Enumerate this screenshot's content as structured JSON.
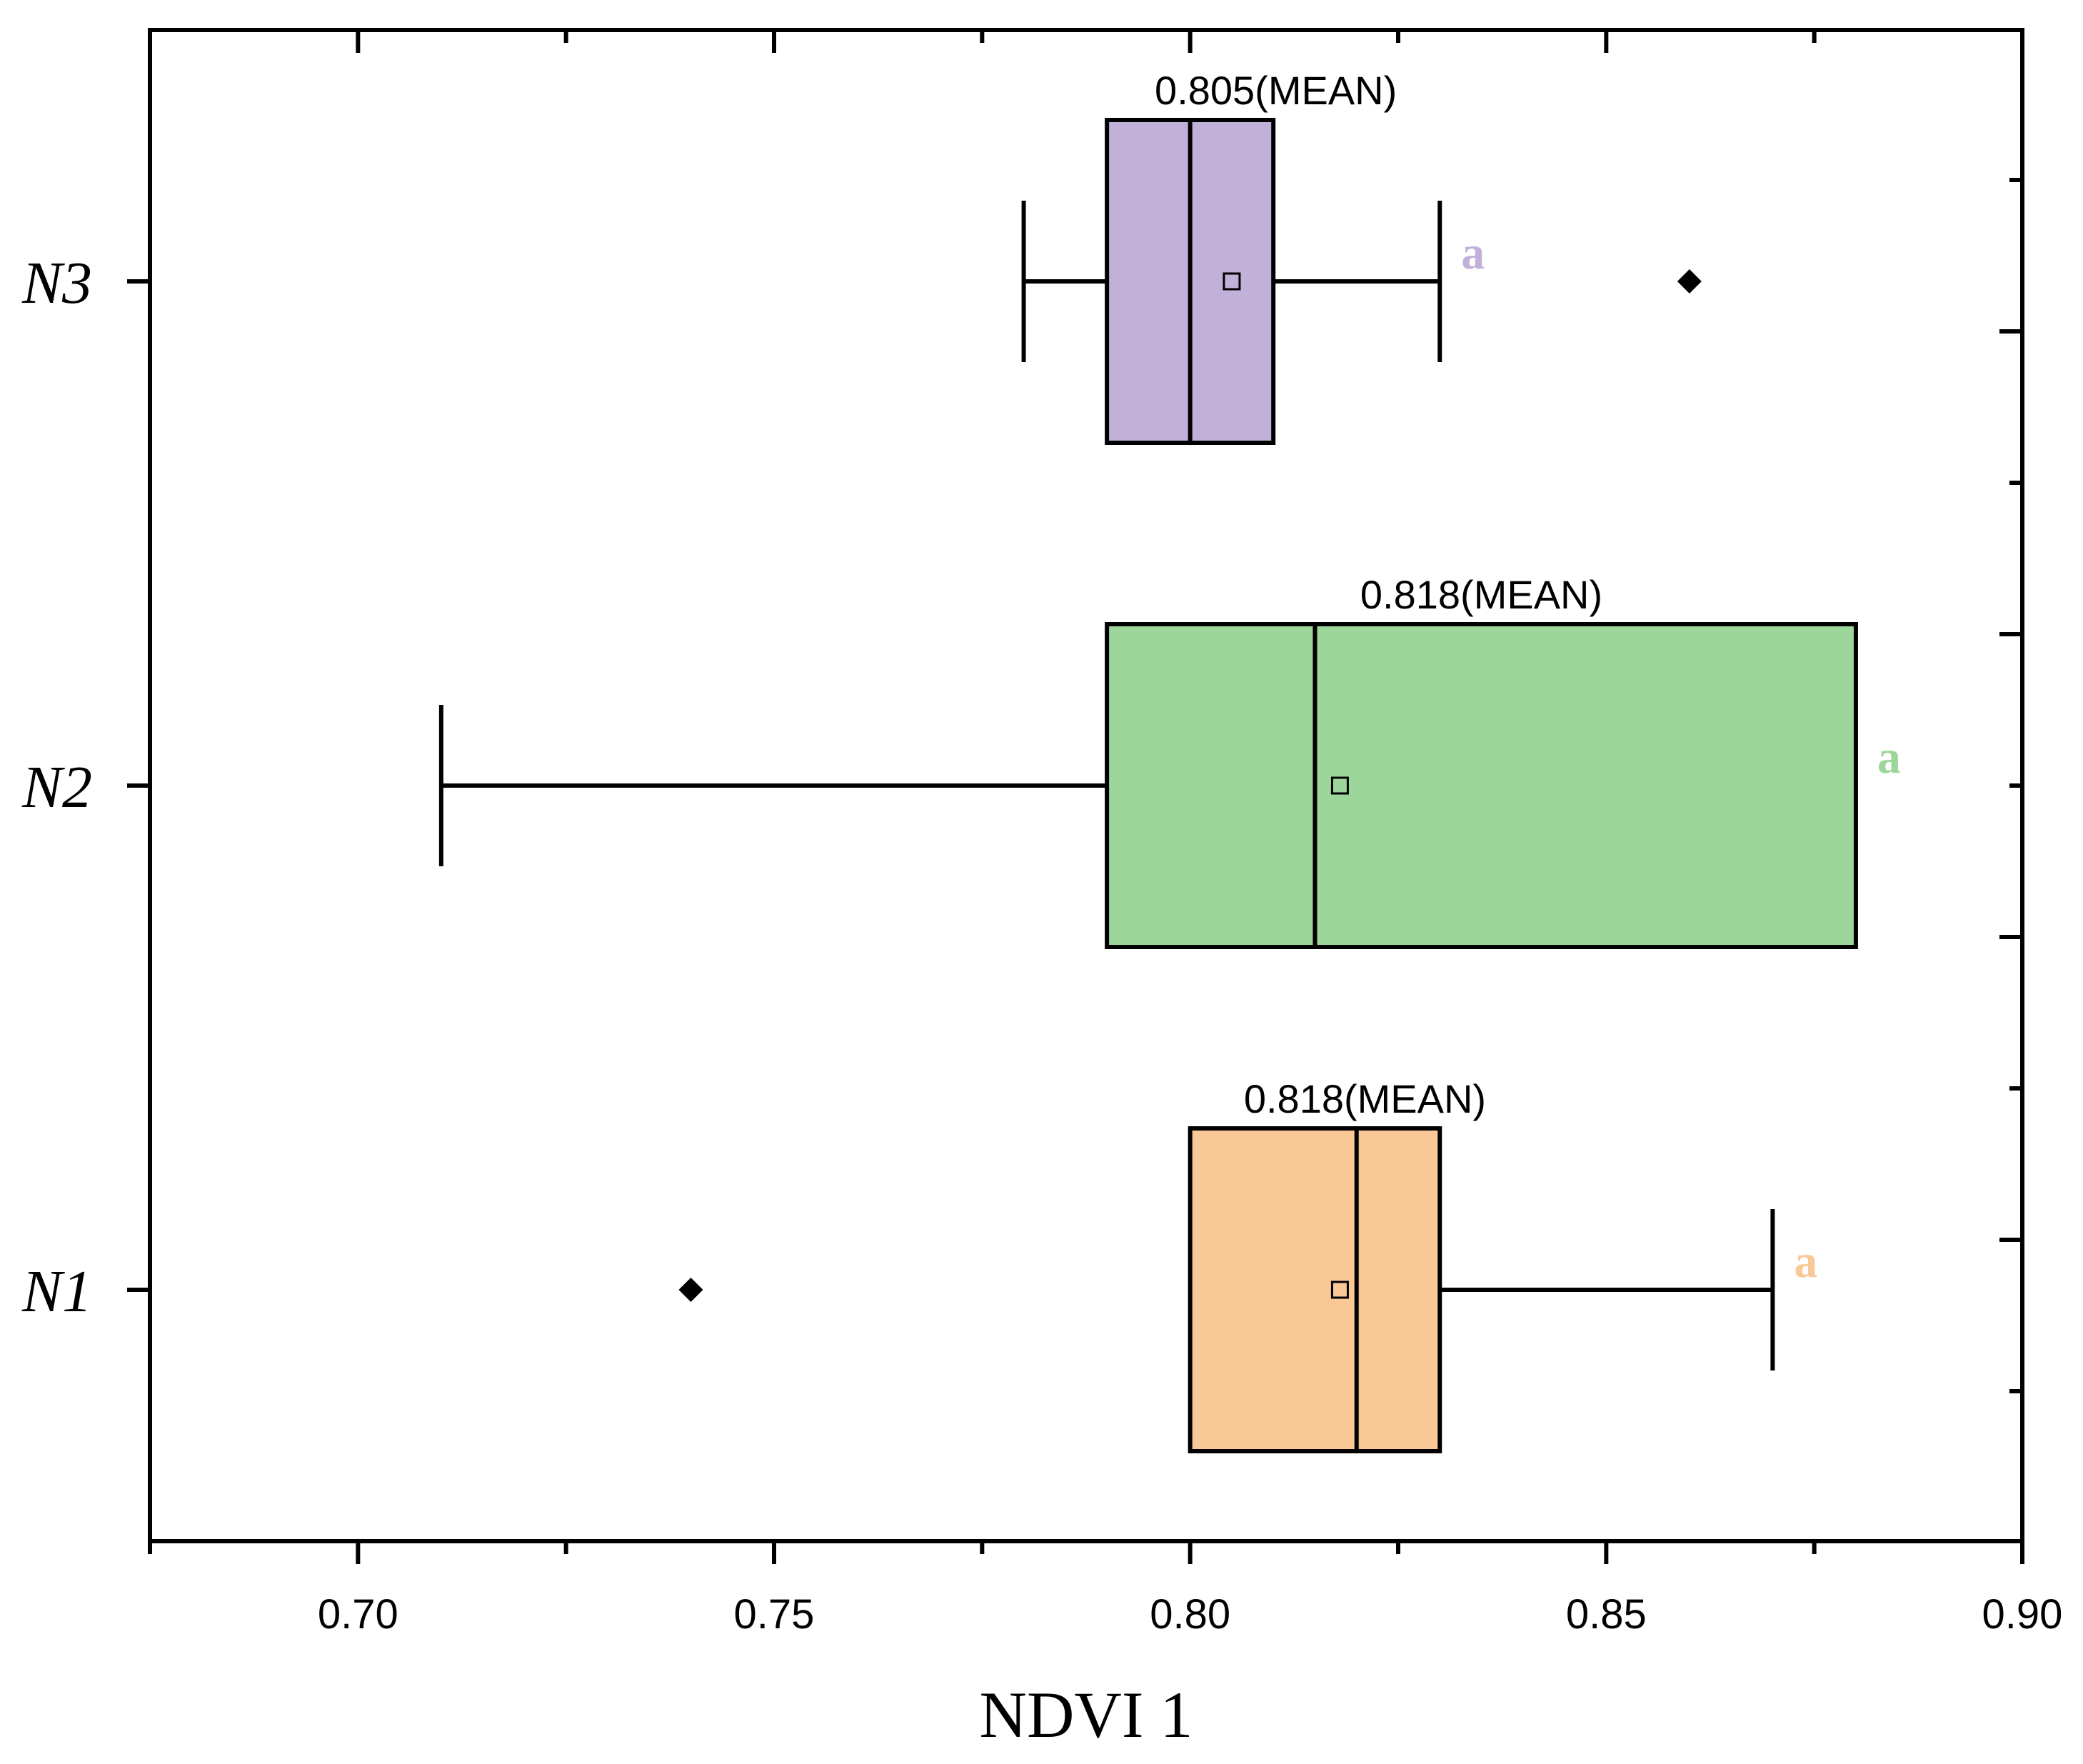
{
  "chart_data": {
    "type": "box",
    "orientation": "horizontal",
    "xlabel": "NDVI 1",
    "xlim": [
      0.675,
      0.9
    ],
    "xticks": [
      "0.70",
      "0.75",
      "0.80",
      "0.85",
      "0.90"
    ],
    "categories": [
      "N3",
      "N2",
      "N1"
    ],
    "series": [
      {
        "name": "N3",
        "color": "#c1b1d8",
        "whisker_low": 0.78,
        "q1": 0.79,
        "median": 0.8,
        "q3": 0.81,
        "whisker_high": 0.83,
        "mean": 0.805,
        "outliers": [
          0.86
        ],
        "mean_label": "0.805(MEAN)",
        "group": "a"
      },
      {
        "name": "N2",
        "color": "#9dd69a",
        "whisker_low": 0.71,
        "q1": 0.79,
        "median": 0.815,
        "q3": 0.88,
        "whisker_high": 0.88,
        "mean": 0.818,
        "outliers": [],
        "mean_label": "0.818(MEAN)",
        "group": "a"
      },
      {
        "name": "N1",
        "color": "#fac897",
        "whisker_low": 0.8,
        "q1": 0.8,
        "median": 0.82,
        "q3": 0.83,
        "whisker_high": 0.87,
        "mean": 0.818,
        "outliers": [
          0.74
        ],
        "mean_label": "0.818(MEAN)",
        "group": "a"
      }
    ]
  }
}
